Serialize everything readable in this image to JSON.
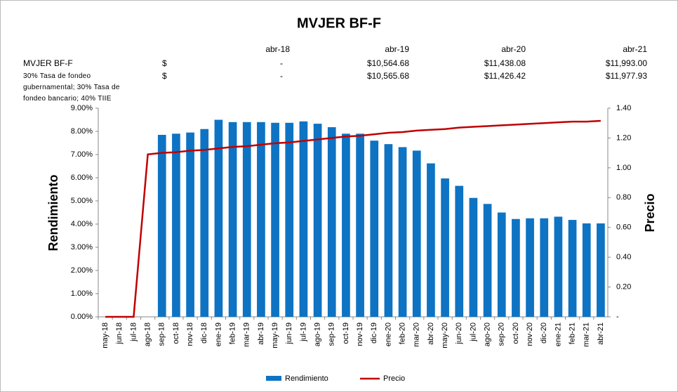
{
  "chart_data": {
    "type": "bar-line",
    "title": "MVJER BF-F",
    "table": {
      "columns": [
        "abr-18",
        "abr-19",
        "abr-20",
        "abr-21"
      ],
      "rows": [
        {
          "label": "MVJER BF-F",
          "currency": "$",
          "values": [
            "-",
            "$10,564.68",
            "$11,438.08",
            "$11,993.00"
          ]
        },
        {
          "label": "30% Tasa de fondeo gubernamental; 30% Tasa de fondeo bancario; 40% TIIE",
          "currency": "$",
          "values": [
            "-",
            "$10,565.68",
            "$11,426.42",
            "$11,977.93"
          ]
        }
      ]
    },
    "categories": [
      "may-18",
      "jun-18",
      "jul-18",
      "ago-18",
      "sep-18",
      "oct-18",
      "nov-18",
      "dic-18",
      "ene-19",
      "feb-19",
      "mar-19",
      "abr-19",
      "may-19",
      "jun-19",
      "jul-19",
      "ago-19",
      "sep-19",
      "oct-19",
      "nov-19",
      "dic-19",
      "ene-20",
      "feb-20",
      "mar-20",
      "abr-20",
      "may-20",
      "jun-20",
      "jul-20",
      "ago-20",
      "sep-20",
      "oct-20",
      "nov-20",
      "dic-20",
      "ene-21",
      "feb-21",
      "mar-21",
      "abr-21"
    ],
    "ylabel": "Rendimiento",
    "y2label": "Precio",
    "ylim": [
      0,
      9
    ],
    "yticks": [
      {
        "value": 0,
        "label": "0.00%"
      },
      {
        "value": 1,
        "label": "1.00%"
      },
      {
        "value": 2,
        "label": "2.00%"
      },
      {
        "value": 3,
        "label": "3.00%"
      },
      {
        "value": 4,
        "label": "4.00%"
      },
      {
        "value": 5,
        "label": "5.00%"
      },
      {
        "value": 6,
        "label": "6.00%"
      },
      {
        "value": 7,
        "label": "7.00%"
      },
      {
        "value": 8,
        "label": "8.00%"
      },
      {
        "value": 9,
        "label": "9.00%"
      }
    ],
    "y2lim": [
      0,
      1.4
    ],
    "y2ticks": [
      {
        "value": 0,
        "label": "-"
      },
      {
        "value": 0.2,
        "label": "0.20"
      },
      {
        "value": 0.4,
        "label": "0.40"
      },
      {
        "value": 0.6,
        "label": "0.60"
      },
      {
        "value": 0.8,
        "label": "0.80"
      },
      {
        "value": 1,
        "label": "1.00"
      },
      {
        "value": 1.2,
        "label": "1.20"
      },
      {
        "value": 1.4,
        "label": "1.40"
      }
    ],
    "series": [
      {
        "name": "Rendimiento",
        "type": "bar",
        "color": "#0e73c3",
        "values": [
          null,
          null,
          null,
          null,
          7.85,
          7.9,
          7.95,
          8.1,
          8.5,
          8.4,
          8.4,
          8.4,
          8.37,
          8.37,
          8.43,
          8.33,
          8.18,
          7.9,
          7.9,
          7.6,
          7.45,
          7.32,
          7.17,
          6.62,
          5.97,
          5.65,
          5.13,
          4.87,
          4.5,
          4.22,
          4.25,
          4.25,
          4.32,
          4.18,
          4.03,
          4.03
        ]
      },
      {
        "name": "Precio",
        "type": "line",
        "axis": "y2",
        "color": "#c00000",
        "values": [
          0,
          0,
          0,
          1.09,
          1.1,
          1.105,
          1.115,
          1.12,
          1.13,
          1.14,
          1.145,
          1.155,
          1.165,
          1.17,
          1.18,
          1.19,
          1.2,
          1.21,
          1.215,
          1.225,
          1.235,
          1.24,
          1.25,
          1.255,
          1.26,
          1.27,
          1.275,
          1.28,
          1.285,
          1.29,
          1.295,
          1.3,
          1.305,
          1.31,
          1.31,
          1.315
        ]
      }
    ]
  }
}
